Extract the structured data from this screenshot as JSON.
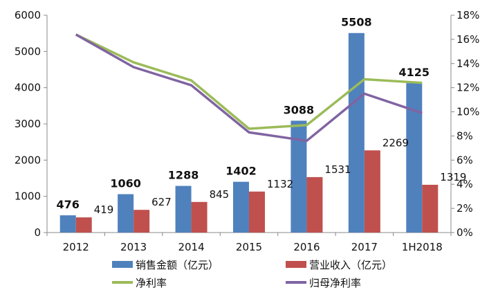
{
  "chart_data": {
    "type": "bar",
    "categories": [
      "2012",
      "2013",
      "2014",
      "2015",
      "2016",
      "2017",
      "1H2018"
    ],
    "series": [
      {
        "name": "销售金额（亿元）",
        "type": "bar",
        "axis": "left",
        "color": "#4f81bd",
        "values": [
          476,
          1060,
          1288,
          1402,
          3088,
          5508,
          4125
        ],
        "labels": [
          "476",
          "1060",
          "1288",
          "1402",
          "3088",
          "5508",
          "4125"
        ]
      },
      {
        "name": "营业收入（亿元）",
        "type": "bar",
        "axis": "left",
        "color": "#c0504d",
        "values": [
          419,
          627,
          845,
          1132,
          1531,
          2269,
          1319
        ],
        "labels": [
          "419",
          "627",
          "845",
          "1132",
          "1531",
          "2269",
          "1319"
        ]
      },
      {
        "name": "净利率",
        "type": "line",
        "axis": "right",
        "color": "#9bbb59",
        "values": [
          16.4,
          14.1,
          12.6,
          8.6,
          8.9,
          12.7,
          12.4
        ]
      },
      {
        "name": "归母净利率",
        "type": "line",
        "axis": "right",
        "color": "#8064a2",
        "values": [
          16.4,
          13.7,
          12.2,
          8.3,
          7.6,
          11.5,
          9.9
        ]
      }
    ],
    "left_axis": {
      "min": 0,
      "max": 6000,
      "ticks": [
        "0",
        "1000",
        "2000",
        "3000",
        "4000",
        "5000",
        "6000"
      ]
    },
    "right_axis": {
      "min": 0,
      "max": 18,
      "ticks": [
        "0%",
        "2%",
        "4%",
        "6%",
        "8%",
        "10%",
        "12%",
        "14%",
        "16%",
        "18%"
      ]
    },
    "grid": false,
    "legend_position": "bottom"
  }
}
